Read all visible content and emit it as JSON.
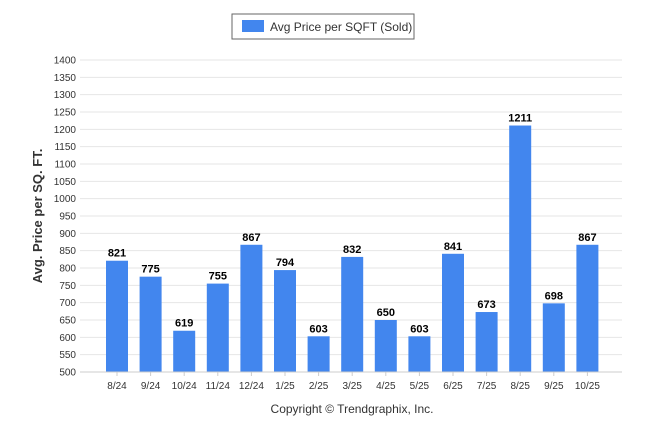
{
  "chart_data": {
    "type": "bar",
    "title": "",
    "xlabel": "",
    "ylabel": "Avg. Price per SQ. FT.",
    "categories": [
      "8/24",
      "9/24",
      "10/24",
      "11/24",
      "12/24",
      "1/25",
      "2/25",
      "3/25",
      "4/25",
      "5/25",
      "6/25",
      "7/25",
      "8/25",
      "9/25",
      "10/25"
    ],
    "series": [
      {
        "name": "Avg Price per SQFT (Sold)",
        "values": [
          821,
          775,
          619,
          755,
          867,
          794,
          603,
          832,
          650,
          603,
          841,
          673,
          1211,
          698,
          867
        ]
      }
    ],
    "ylim": [
      500,
      1400
    ],
    "yticks": [
      500,
      550,
      600,
      650,
      700,
      750,
      800,
      850,
      900,
      950,
      1000,
      1050,
      1100,
      1150,
      1200,
      1250,
      1300,
      1350,
      1400
    ],
    "grid": true,
    "legend_position": "top-center",
    "bar_color": "#4286ee",
    "credit": "Copyright © Trendgraphix, Inc."
  }
}
